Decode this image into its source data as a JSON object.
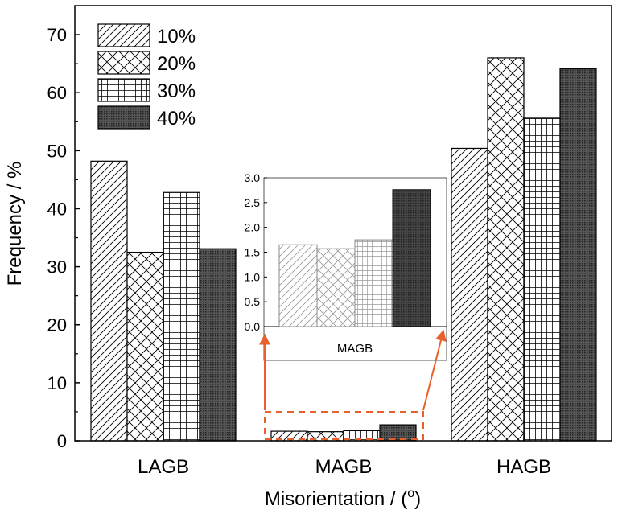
{
  "chart_data": [
    {
      "type": "bar",
      "categories": [
        "LAGB",
        "MAGB",
        "HAGB"
      ],
      "series": [
        {
          "name": "10%",
          "pattern": "diagonal",
          "values": [
            48.2,
            1.65,
            50.4
          ]
        },
        {
          "name": "20%",
          "pattern": "crosshatch",
          "values": [
            32.5,
            1.57,
            66.0
          ]
        },
        {
          "name": "30%",
          "pattern": "grid",
          "values": [
            42.8,
            1.75,
            55.6
          ]
        },
        {
          "name": "40%",
          "pattern": "dense",
          "values": [
            33.1,
            2.76,
            64.1
          ]
        }
      ],
      "title": "",
      "xlabel": "Misorientation / (",
      "xlabel_sup": "o",
      "xlabel_end": ")",
      "ylabel": "Frequency / %",
      "ylim": [
        0,
        75
      ],
      "yticks": [
        "0",
        "10",
        "20",
        "30",
        "40",
        "50",
        "60",
        "70"
      ],
      "legend_position": "top-left",
      "grid": false
    },
    {
      "type": "bar",
      "inset": true,
      "categories": [
        "MAGB"
      ],
      "series": [
        {
          "name": "10%",
          "pattern": "diagonal",
          "values": [
            1.65
          ]
        },
        {
          "name": "20%",
          "pattern": "crosshatch",
          "values": [
            1.57
          ]
        },
        {
          "name": "30%",
          "pattern": "grid",
          "values": [
            1.75
          ]
        },
        {
          "name": "40%",
          "pattern": "dense",
          "values": [
            2.76
          ]
        }
      ],
      "ylim": [
        0,
        3.0
      ],
      "yticks": [
        "0.0",
        "0.5",
        "1.0",
        "1.5",
        "2.0",
        "2.5",
        "3.0"
      ],
      "highlight_color": "#e8602c"
    }
  ]
}
